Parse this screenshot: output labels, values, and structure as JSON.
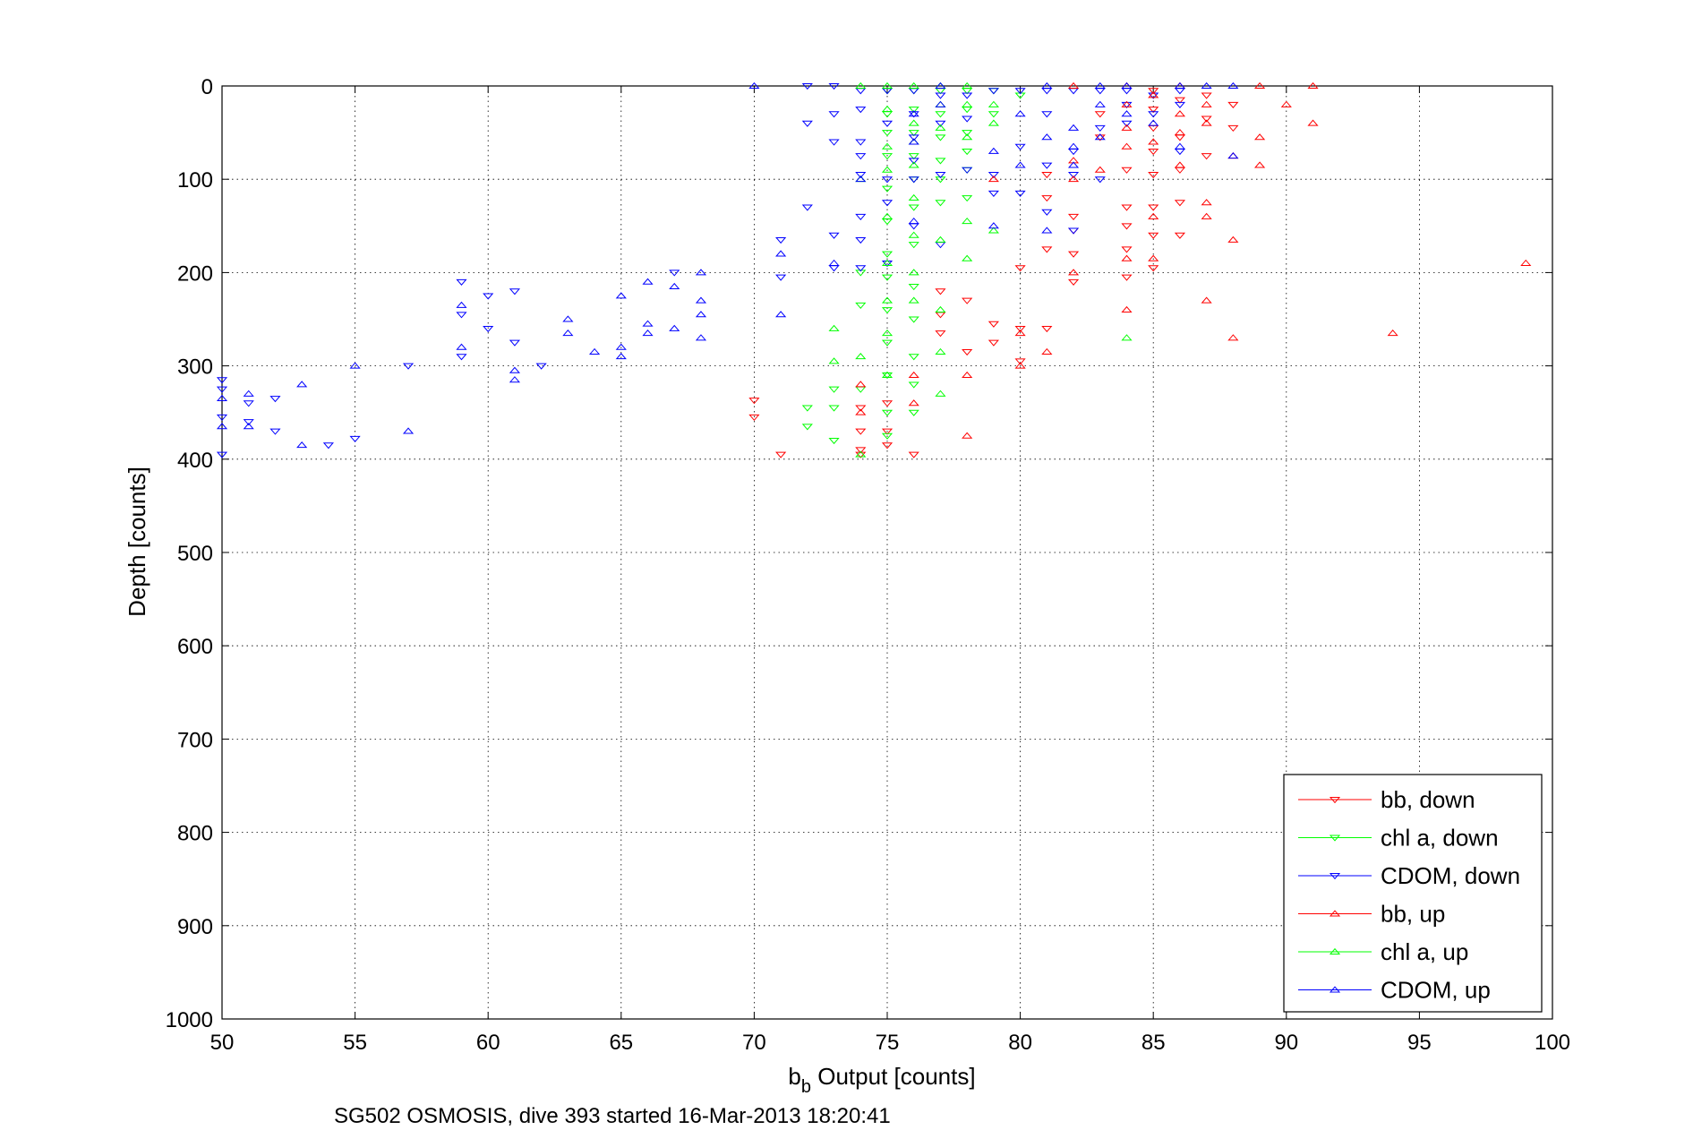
{
  "chart_data": {
    "type": "scatter",
    "xlabel_main": "b",
    "xlabel_sub": "b",
    "xlabel_rest": " Output [counts]",
    "ylabel": "Depth [counts]",
    "caption": "SG502 OSMOSIS, dive 393 started 16-Mar-2013 18:20:41",
    "xlim": [
      50,
      100
    ],
    "ylim": [
      0,
      1000
    ],
    "y_reversed": true,
    "grid": true,
    "legend_position": "bottom-right",
    "xticks": [
      "50",
      "55",
      "60",
      "65",
      "70",
      "75",
      "80",
      "85",
      "90",
      "95",
      "100"
    ],
    "yticks": [
      "0",
      "100",
      "200",
      "300",
      "400",
      "500",
      "600",
      "700",
      "800",
      "900",
      "1000"
    ],
    "series": [
      {
        "name": "bb, down",
        "color": "#ff0000",
        "marker": "triangle-down",
        "points": [
          [
            70,
            337
          ],
          [
            70,
            355
          ],
          [
            71,
            395
          ],
          [
            74,
            345
          ],
          [
            74,
            370
          ],
          [
            74,
            390
          ],
          [
            74,
            395
          ],
          [
            75,
            340
          ],
          [
            75,
            370
          ],
          [
            75,
            385
          ],
          [
            76,
            395
          ],
          [
            77,
            220
          ],
          [
            77,
            245
          ],
          [
            77,
            265
          ],
          [
            78,
            230
          ],
          [
            78,
            285
          ],
          [
            79,
            255
          ],
          [
            79,
            275
          ],
          [
            80,
            195
          ],
          [
            80,
            260
          ],
          [
            80,
            295
          ],
          [
            81,
            95
          ],
          [
            81,
            120
          ],
          [
            81,
            175
          ],
          [
            81,
            260
          ],
          [
            82,
            140
          ],
          [
            82,
            155
          ],
          [
            82,
            180
          ],
          [
            82,
            210
          ],
          [
            83,
            30
          ],
          [
            83,
            55
          ],
          [
            84,
            90
          ],
          [
            84,
            130
          ],
          [
            84,
            150
          ],
          [
            84,
            175
          ],
          [
            84,
            205
          ],
          [
            85,
            5
          ],
          [
            85,
            25
          ],
          [
            85,
            45
          ],
          [
            85,
            70
          ],
          [
            85,
            95
          ],
          [
            85,
            130
          ],
          [
            85,
            160
          ],
          [
            85,
            195
          ],
          [
            86,
            15
          ],
          [
            86,
            55
          ],
          [
            86,
            90
          ],
          [
            86,
            125
          ],
          [
            86,
            160
          ],
          [
            87,
            10
          ],
          [
            87,
            35
          ],
          [
            87,
            75
          ],
          [
            88,
            20
          ],
          [
            88,
            45
          ]
        ]
      },
      {
        "name": "chl a, down",
        "color": "#00ff00",
        "marker": "triangle-down",
        "points": [
          [
            72,
            345
          ],
          [
            72,
            365
          ],
          [
            73,
            325
          ],
          [
            73,
            345
          ],
          [
            73,
            380
          ],
          [
            74,
            200
          ],
          [
            74,
            235
          ],
          [
            74,
            325
          ],
          [
            75,
            5
          ],
          [
            75,
            30
          ],
          [
            75,
            50
          ],
          [
            75,
            75
          ],
          [
            75,
            110
          ],
          [
            75,
            145
          ],
          [
            75,
            180
          ],
          [
            75,
            205
          ],
          [
            75,
            240
          ],
          [
            75,
            275
          ],
          [
            75,
            310
          ],
          [
            75,
            350
          ],
          [
            75,
            375
          ],
          [
            76,
            5
          ],
          [
            76,
            25
          ],
          [
            76,
            50
          ],
          [
            76,
            75
          ],
          [
            76,
            100
          ],
          [
            76,
            130
          ],
          [
            76,
            170
          ],
          [
            76,
            215
          ],
          [
            76,
            250
          ],
          [
            76,
            290
          ],
          [
            76,
            320
          ],
          [
            76,
            350
          ],
          [
            77,
            5
          ],
          [
            77,
            30
          ],
          [
            77,
            55
          ],
          [
            77,
            80
          ],
          [
            77,
            100
          ],
          [
            77,
            125
          ],
          [
            78,
            5
          ],
          [
            78,
            25
          ],
          [
            78,
            50
          ],
          [
            78,
            70
          ],
          [
            78,
            90
          ],
          [
            78,
            120
          ],
          [
            79,
            5
          ],
          [
            79,
            30
          ],
          [
            80,
            10
          ]
        ]
      },
      {
        "name": "CDOM, down",
        "color": "#0000ff",
        "marker": "triangle-down",
        "points": [
          [
            50,
            315
          ],
          [
            50,
            325
          ],
          [
            50,
            355
          ],
          [
            50,
            395
          ],
          [
            51,
            340
          ],
          [
            51,
            360
          ],
          [
            52,
            335
          ],
          [
            52,
            370
          ],
          [
            54,
            385
          ],
          [
            55,
            378
          ],
          [
            57,
            300
          ],
          [
            59,
            210
          ],
          [
            59,
            245
          ],
          [
            59,
            290
          ],
          [
            60,
            225
          ],
          [
            60,
            260
          ],
          [
            61,
            220
          ],
          [
            61,
            275
          ],
          [
            62,
            300
          ],
          [
            67,
            200
          ],
          [
            71,
            165
          ],
          [
            71,
            205
          ],
          [
            72,
            0
          ],
          [
            72,
            40
          ],
          [
            72,
            130
          ],
          [
            73,
            0
          ],
          [
            73,
            30
          ],
          [
            73,
            60
          ],
          [
            73,
            160
          ],
          [
            73,
            195
          ],
          [
            74,
            5
          ],
          [
            74,
            25
          ],
          [
            74,
            60
          ],
          [
            74,
            75
          ],
          [
            74,
            95
          ],
          [
            74,
            140
          ],
          [
            74,
            165
          ],
          [
            74,
            195
          ],
          [
            75,
            5
          ],
          [
            75,
            40
          ],
          [
            75,
            100
          ],
          [
            75,
            125
          ],
          [
            75,
            190
          ],
          [
            76,
            5
          ],
          [
            76,
            30
          ],
          [
            76,
            55
          ],
          [
            76,
            80
          ],
          [
            76,
            100
          ],
          [
            76,
            150
          ],
          [
            77,
            10
          ],
          [
            77,
            40
          ],
          [
            77,
            95
          ],
          [
            77,
            170
          ],
          [
            78,
            10
          ],
          [
            78,
            35
          ],
          [
            78,
            90
          ],
          [
            79,
            5
          ],
          [
            79,
            95
          ],
          [
            79,
            115
          ],
          [
            80,
            5
          ],
          [
            80,
            65
          ],
          [
            80,
            115
          ],
          [
            81,
            5
          ],
          [
            81,
            30
          ],
          [
            81,
            85
          ],
          [
            81,
            135
          ],
          [
            82,
            5
          ],
          [
            82,
            70
          ],
          [
            82,
            95
          ],
          [
            82,
            155
          ],
          [
            83,
            5
          ],
          [
            83,
            45
          ],
          [
            83,
            100
          ],
          [
            84,
            5
          ],
          [
            84,
            20
          ],
          [
            84,
            40
          ],
          [
            85,
            10
          ],
          [
            85,
            30
          ],
          [
            86,
            5
          ],
          [
            86,
            20
          ],
          [
            86,
            70
          ]
        ]
      },
      {
        "name": "bb, up",
        "color": "#ff0000",
        "marker": "triangle-up",
        "points": [
          [
            74,
            320
          ],
          [
            74,
            350
          ],
          [
            76,
            310
          ],
          [
            76,
            340
          ],
          [
            78,
            375
          ],
          [
            78,
            310
          ],
          [
            79,
            100
          ],
          [
            80,
            265
          ],
          [
            80,
            300
          ],
          [
            81,
            285
          ],
          [
            82,
            0
          ],
          [
            82,
            80
          ],
          [
            82,
            100
          ],
          [
            82,
            200
          ],
          [
            83,
            90
          ],
          [
            84,
            0
          ],
          [
            84,
            20
          ],
          [
            84,
            45
          ],
          [
            84,
            65
          ],
          [
            84,
            185
          ],
          [
            84,
            240
          ],
          [
            85,
            10
          ],
          [
            85,
            60
          ],
          [
            85,
            140
          ],
          [
            85,
            185
          ],
          [
            86,
            0
          ],
          [
            86,
            30
          ],
          [
            86,
            50
          ],
          [
            86,
            85
          ],
          [
            87,
            20
          ],
          [
            87,
            40
          ],
          [
            87,
            125
          ],
          [
            87,
            140
          ],
          [
            87,
            230
          ],
          [
            88,
            75
          ],
          [
            88,
            165
          ],
          [
            88,
            270
          ],
          [
            89,
            0
          ],
          [
            89,
            55
          ],
          [
            89,
            85
          ],
          [
            90,
            20
          ],
          [
            91,
            0
          ],
          [
            91,
            40
          ],
          [
            94,
            265
          ],
          [
            99,
            190
          ]
        ]
      },
      {
        "name": "chl a, up",
        "color": "#00ff00",
        "marker": "triangle-up",
        "points": [
          [
            73,
            260
          ],
          [
            73,
            295
          ],
          [
            74,
            0
          ],
          [
            74,
            100
          ],
          [
            74,
            290
          ],
          [
            74,
            395
          ],
          [
            75,
            0
          ],
          [
            75,
            25
          ],
          [
            75,
            65
          ],
          [
            75,
            90
          ],
          [
            75,
            140
          ],
          [
            75,
            190
          ],
          [
            75,
            230
          ],
          [
            75,
            265
          ],
          [
            75,
            310
          ],
          [
            76,
            0
          ],
          [
            76,
            40
          ],
          [
            76,
            60
          ],
          [
            76,
            85
          ],
          [
            76,
            120
          ],
          [
            76,
            160
          ],
          [
            76,
            200
          ],
          [
            76,
            230
          ],
          [
            77,
            0
          ],
          [
            77,
            20
          ],
          [
            77,
            45
          ],
          [
            77,
            165
          ],
          [
            77,
            240
          ],
          [
            77,
            285
          ],
          [
            77,
            330
          ],
          [
            78,
            0
          ],
          [
            78,
            20
          ],
          [
            78,
            55
          ],
          [
            78,
            145
          ],
          [
            78,
            185
          ],
          [
            79,
            20
          ],
          [
            79,
            40
          ],
          [
            79,
            155
          ],
          [
            84,
            270
          ]
        ]
      },
      {
        "name": "CDOM, up",
        "color": "#0000ff",
        "marker": "triangle-up",
        "points": [
          [
            50,
            335
          ],
          [
            50,
            365
          ],
          [
            51,
            330
          ],
          [
            51,
            365
          ],
          [
            53,
            320
          ],
          [
            53,
            385
          ],
          [
            55,
            300
          ],
          [
            57,
            370
          ],
          [
            59,
            235
          ],
          [
            59,
            280
          ],
          [
            61,
            305
          ],
          [
            61,
            315
          ],
          [
            63,
            250
          ],
          [
            63,
            265
          ],
          [
            64,
            285
          ],
          [
            65,
            225
          ],
          [
            65,
            280
          ],
          [
            65,
            290
          ],
          [
            66,
            210
          ],
          [
            66,
            255
          ],
          [
            66,
            265
          ],
          [
            67,
            215
          ],
          [
            67,
            260
          ],
          [
            68,
            200
          ],
          [
            68,
            230
          ],
          [
            68,
            245
          ],
          [
            68,
            270
          ],
          [
            70,
            0
          ],
          [
            71,
            180
          ],
          [
            71,
            245
          ],
          [
            73,
            190
          ],
          [
            74,
            100
          ],
          [
            76,
            30
          ],
          [
            76,
            60
          ],
          [
            76,
            145
          ],
          [
            77,
            0
          ],
          [
            77,
            20
          ],
          [
            79,
            70
          ],
          [
            79,
            150
          ],
          [
            80,
            30
          ],
          [
            80,
            85
          ],
          [
            81,
            0
          ],
          [
            81,
            55
          ],
          [
            81,
            155
          ],
          [
            82,
            45
          ],
          [
            82,
            65
          ],
          [
            82,
            85
          ],
          [
            83,
            0
          ],
          [
            83,
            20
          ],
          [
            83,
            55
          ],
          [
            84,
            0
          ],
          [
            84,
            30
          ],
          [
            85,
            40
          ],
          [
            86,
            0
          ],
          [
            86,
            65
          ],
          [
            87,
            0
          ],
          [
            88,
            0
          ],
          [
            88,
            75
          ]
        ]
      }
    ]
  }
}
